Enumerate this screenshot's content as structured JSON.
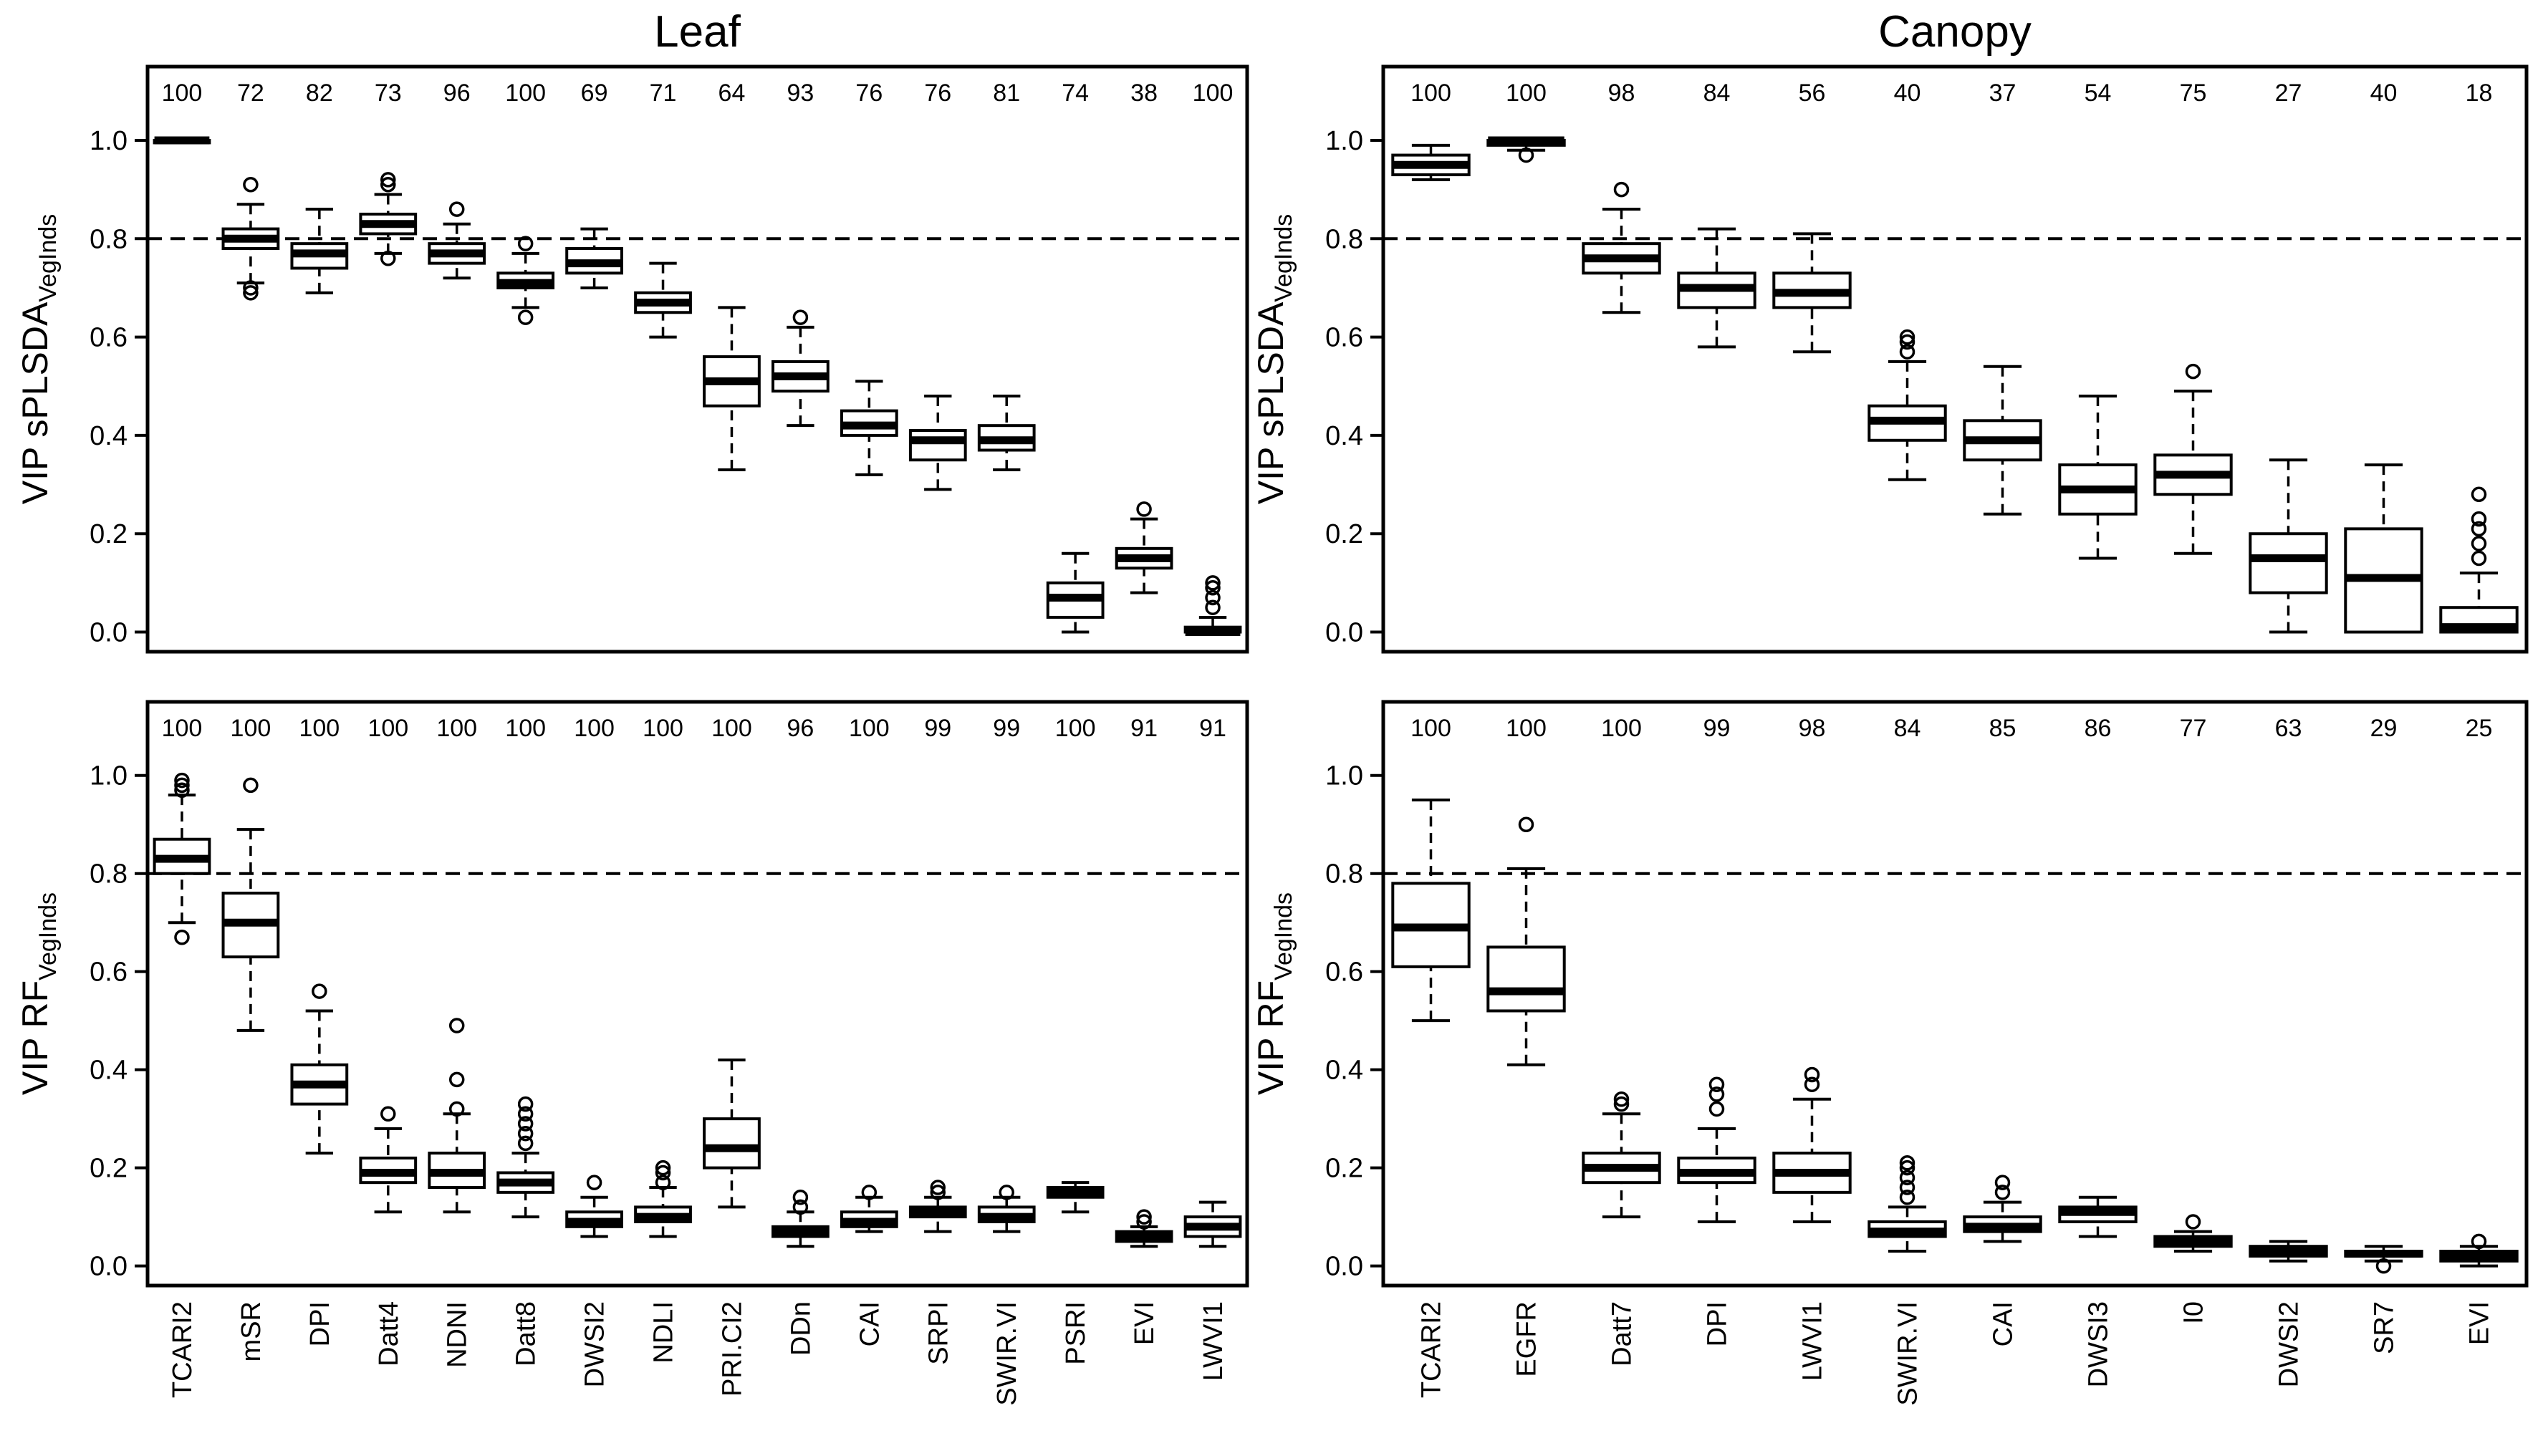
{
  "chart_data": [
    {
      "type": "box",
      "title": "Leaf",
      "ylabel": "VIP sPLSDA",
      "ylabel_sub": "VegInds",
      "hline": 0.8,
      "ylim": [
        -0.04,
        1.15
      ],
      "yticks": [
        {
          "value": 0,
          "label": "0.0"
        },
        0.2,
        0.4,
        0.6,
        0.8,
        {
          "value": 1,
          "label": "1.0"
        }
      ],
      "counts": [
        100,
        72,
        82,
        73,
        96,
        100,
        69,
        71,
        64,
        93,
        76,
        76,
        81,
        74,
        38,
        100
      ],
      "whisker_low": [
        1.0,
        0.71,
        0.69,
        0.77,
        0.72,
        0.66,
        0.7,
        0.6,
        0.33,
        0.42,
        0.32,
        0.29,
        0.33,
        0.0,
        0.08,
        0.0
      ],
      "q1": [
        0.995,
        0.78,
        0.74,
        0.81,
        0.75,
        0.7,
        0.73,
        0.65,
        0.46,
        0.49,
        0.4,
        0.35,
        0.37,
        0.03,
        0.13,
        0.0
      ],
      "median": [
        1.0,
        0.8,
        0.77,
        0.83,
        0.77,
        0.71,
        0.75,
        0.67,
        0.51,
        0.52,
        0.42,
        0.39,
        0.39,
        0.07,
        0.15,
        0.0
      ],
      "q3": [
        1.0,
        0.82,
        0.79,
        0.85,
        0.79,
        0.73,
        0.78,
        0.69,
        0.56,
        0.55,
        0.45,
        0.41,
        0.42,
        0.1,
        0.17,
        0.01
      ],
      "whisker_high": [
        1.0,
        0.87,
        0.86,
        0.89,
        0.83,
        0.77,
        0.82,
        0.75,
        0.66,
        0.62,
        0.51,
        0.48,
        0.48,
        0.16,
        0.23,
        0.03
      ],
      "outliers": [
        [],
        [
          0.91,
          0.7,
          0.69
        ],
        [],
        [
          0.92,
          0.91,
          0.76
        ],
        [
          0.86
        ],
        [
          0.79,
          0.64
        ],
        [],
        [],
        [],
        [
          0.64
        ],
        [],
        [],
        [],
        [],
        [
          0.25
        ],
        [
          0.05,
          0.07,
          0.09,
          0.1
        ]
      ]
    },
    {
      "type": "box",
      "title": "Canopy",
      "ylabel": "VIP sPLSDA",
      "ylabel_sub": "VegInds",
      "hline": 0.8,
      "ylim": [
        -0.04,
        1.15
      ],
      "yticks": [
        {
          "value": 0,
          "label": "0.0"
        },
        0.2,
        0.4,
        0.6,
        0.8,
        {
          "value": 1,
          "label": "1.0"
        }
      ],
      "counts": [
        100,
        100,
        98,
        84,
        56,
        40,
        37,
        54,
        75,
        27,
        40,
        18
      ],
      "whisker_low": [
        0.92,
        0.98,
        0.65,
        0.58,
        0.57,
        0.31,
        0.24,
        0.15,
        0.16,
        0.0,
        0.0,
        0.0
      ],
      "q1": [
        0.93,
        0.99,
        0.73,
        0.66,
        0.66,
        0.39,
        0.35,
        0.24,
        0.28,
        0.08,
        0.0,
        0.0
      ],
      "median": [
        0.95,
        1.0,
        0.76,
        0.7,
        0.69,
        0.43,
        0.39,
        0.29,
        0.32,
        0.15,
        0.11,
        0.01
      ],
      "q3": [
        0.97,
        1.0,
        0.79,
        0.73,
        0.73,
        0.46,
        0.43,
        0.34,
        0.36,
        0.2,
        0.21,
        0.05
      ],
      "whisker_high": [
        0.99,
        1.0,
        0.86,
        0.82,
        0.81,
        0.55,
        0.54,
        0.48,
        0.49,
        0.35,
        0.34,
        0.12
      ],
      "outliers": [
        [],
        [
          0.97
        ],
        [
          0.9
        ],
        [],
        [],
        [
          0.57,
          0.59,
          0.6
        ],
        [],
        [],
        [
          0.53
        ],
        [],
        [],
        [
          0.15,
          0.18,
          0.21,
          0.23,
          0.28
        ]
      ]
    },
    {
      "type": "box",
      "ylabel": "VIP RF",
      "ylabel_sub": "VegInds",
      "hline": 0.8,
      "ylim": [
        -0.04,
        1.15
      ],
      "yticks": [
        {
          "value": 0,
          "label": "0.0"
        },
        0.2,
        0.4,
        0.6,
        0.8,
        {
          "value": 1,
          "label": "1.0"
        }
      ],
      "categories": [
        "TCARI2",
        "mSR",
        "DPI",
        "Datt4",
        "NDNI",
        "Datt8",
        "DWSI2",
        "NDLI",
        "PRI.CI2",
        "DDn",
        "CAI",
        "SRPI",
        "SWIR.VI",
        "PSRI",
        "EVI",
        "LWVI1"
      ],
      "counts": [
        100,
        100,
        100,
        100,
        100,
        100,
        100,
        100,
        100,
        96,
        100,
        99,
        99,
        100,
        91,
        91
      ],
      "whisker_low": [
        0.7,
        0.48,
        0.23,
        0.11,
        0.11,
        0.1,
        0.06,
        0.06,
        0.12,
        0.04,
        0.07,
        0.07,
        0.07,
        0.11,
        0.04,
        0.04
      ],
      "q1": [
        0.8,
        0.63,
        0.33,
        0.17,
        0.16,
        0.15,
        0.08,
        0.09,
        0.2,
        0.06,
        0.08,
        0.1,
        0.09,
        0.14,
        0.05,
        0.06
      ],
      "median": [
        0.83,
        0.7,
        0.37,
        0.19,
        0.19,
        0.17,
        0.09,
        0.1,
        0.24,
        0.07,
        0.09,
        0.11,
        0.1,
        0.15,
        0.06,
        0.08
      ],
      "q3": [
        0.87,
        0.76,
        0.41,
        0.22,
        0.23,
        0.19,
        0.11,
        0.12,
        0.3,
        0.08,
        0.11,
        0.12,
        0.12,
        0.16,
        0.07,
        0.1
      ],
      "whisker_high": [
        0.96,
        0.89,
        0.52,
        0.28,
        0.31,
        0.23,
        0.14,
        0.16,
        0.42,
        0.11,
        0.14,
        0.14,
        0.14,
        0.17,
        0.08,
        0.13
      ],
      "outliers": [
        [
          0.97,
          0.98,
          0.99,
          0.67
        ],
        [
          0.98
        ],
        [
          0.56
        ],
        [
          0.31
        ],
        [
          0.32,
          0.38,
          0.49
        ],
        [
          0.25,
          0.27,
          0.29,
          0.31,
          0.33
        ],
        [
          0.17
        ],
        [
          0.17,
          0.19,
          0.2
        ],
        [],
        [
          0.12,
          0.14
        ],
        [
          0.15
        ],
        [
          0.15,
          0.16
        ],
        [
          0.15
        ],
        [],
        [
          0.09,
          0.1
        ],
        []
      ]
    },
    {
      "type": "box",
      "ylabel": "VIP RF",
      "ylabel_sub": "VegInds",
      "hline": 0.8,
      "ylim": [
        -0.04,
        1.15
      ],
      "yticks": [
        {
          "value": 0,
          "label": "0.0"
        },
        0.2,
        0.4,
        0.6,
        0.8,
        {
          "value": 1,
          "label": "1.0"
        }
      ],
      "categories": [
        "TCARI2",
        "EGFR",
        "Datt7",
        "DPI",
        "LWVI1",
        "SWIR.VI",
        "CAI",
        "DWSI3",
        "I0",
        "DWSI2",
        "SR7",
        "EVI"
      ],
      "counts": [
        100,
        100,
        100,
        99,
        98,
        84,
        85,
        86,
        77,
        63,
        29,
        25
      ],
      "whisker_low": [
        0.5,
        0.41,
        0.1,
        0.09,
        0.09,
        0.03,
        0.05,
        0.06,
        0.03,
        0.01,
        0.01,
        0.0
      ],
      "q1": [
        0.61,
        0.52,
        0.17,
        0.17,
        0.15,
        0.06,
        0.07,
        0.09,
        0.04,
        0.02,
        0.02,
        0.01
      ],
      "median": [
        0.69,
        0.56,
        0.2,
        0.19,
        0.19,
        0.07,
        0.08,
        0.11,
        0.05,
        0.03,
        0.025,
        0.02
      ],
      "q3": [
        0.78,
        0.65,
        0.23,
        0.22,
        0.23,
        0.09,
        0.1,
        0.12,
        0.06,
        0.04,
        0.03,
        0.03
      ],
      "whisker_high": [
        0.95,
        0.81,
        0.31,
        0.28,
        0.34,
        0.12,
        0.13,
        0.14,
        0.07,
        0.05,
        0.04,
        0.04
      ],
      "outliers": [
        [],
        [
          0.9
        ],
        [
          0.33,
          0.34
        ],
        [
          0.32,
          0.35,
          0.37
        ],
        [
          0.37,
          0.39
        ],
        [
          0.14,
          0.16,
          0.18,
          0.2,
          0.21
        ],
        [
          0.15,
          0.17
        ],
        [],
        [
          0.09
        ],
        [],
        [
          0.0
        ],
        [
          0.05
        ]
      ]
    }
  ]
}
